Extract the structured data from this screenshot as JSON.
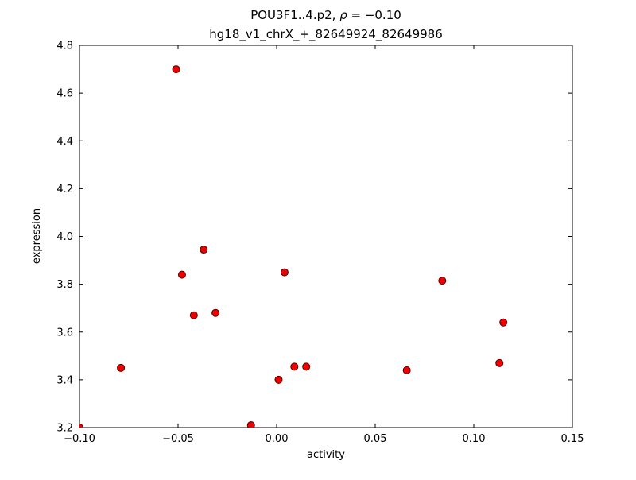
{
  "title": {
    "prefix": "POU3F1..4.p2, ",
    "rho": "ρ",
    "rho_value": " = −0.10",
    "line2": "hg18_v1_chrX_+_82649924_82649986"
  },
  "chart_data": {
    "type": "scatter",
    "title_line1": "POU3F1..4.p2, ρ = −0.10",
    "title_line2": "hg18_v1_chrX_+_82649924_82649986",
    "xlabel": "activity",
    "ylabel": "expression",
    "xlim": [
      -0.1,
      0.15
    ],
    "ylim": [
      3.2,
      4.8
    ],
    "xticks": [
      -0.1,
      -0.05,
      0.0,
      0.05,
      0.1,
      0.15
    ],
    "xtick_labels": [
      "−0.10",
      "−0.05",
      "0.00",
      "0.05",
      "0.10",
      "0.15"
    ],
    "yticks": [
      3.2,
      3.4,
      3.6,
      3.8,
      4.0,
      4.2,
      4.4,
      4.6,
      4.8
    ],
    "ytick_labels": [
      "3.2",
      "3.4",
      "3.6",
      "3.8",
      "4.0",
      "4.2",
      "4.4",
      "4.6",
      "4.8"
    ],
    "grid": false,
    "legend": null,
    "x": [
      -0.1,
      -0.079,
      -0.051,
      -0.048,
      -0.042,
      -0.037,
      -0.031,
      -0.013,
      0.001,
      0.004,
      0.009,
      0.015,
      0.066,
      0.084,
      0.113,
      0.115
    ],
    "y": [
      3.2,
      3.45,
      4.7,
      3.84,
      3.67,
      3.945,
      3.68,
      3.21,
      3.4,
      3.85,
      3.455,
      3.455,
      3.44,
      3.815,
      3.47,
      3.64
    ],
    "marker": {
      "shape": "circle",
      "fill": "#ee0000",
      "stroke": "#550000",
      "radius": 4.5
    },
    "axis_color": "#000000",
    "background": "#ffffff"
  }
}
